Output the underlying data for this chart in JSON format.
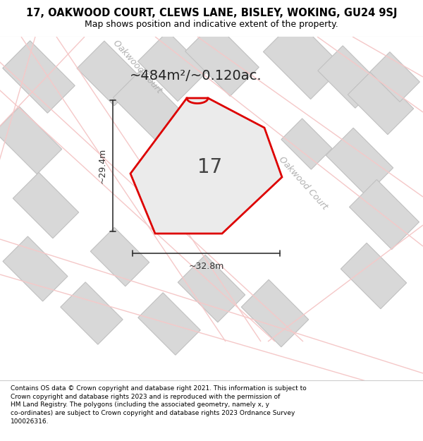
{
  "title": "17, OAKWOOD COURT, CLEWS LANE, BISLEY, WOKING, GU24 9SJ",
  "subtitle": "Map shows position and indicative extent of the property.",
  "area_text": "~484m²/~0.120ac.",
  "width_label": "~32.8m",
  "height_label": "~29.4m",
  "number_label": "17",
  "footer_text": "Contains OS data © Crown copyright and database right 2021. This information is subject to Crown copyright and database rights 2023 and is reproduced with the permission of HM Land Registry. The polygons (including the associated geometry, namely x, y co-ordinates) are subject to Crown copyright and database rights 2023 Ordnance Survey 100026316.",
  "map_bg": "#f7f7f7",
  "property_fill": "#e8e8e8",
  "property_outline": "#dd0000",
  "road_pink": "#f5c8c8",
  "building_fill": "#d8d8d8",
  "building_outline": "#c0c0c0",
  "street_label_color": "#b0b0b0",
  "dim_color": "#333333",
  "title_fontsize": 10.5,
  "subtitle_fontsize": 9,
  "footer_fontsize": 6.5,
  "map_number_fontsize": 20,
  "area_fontsize": 14,
  "dim_fontsize": 9,
  "street_fontsize": 9
}
